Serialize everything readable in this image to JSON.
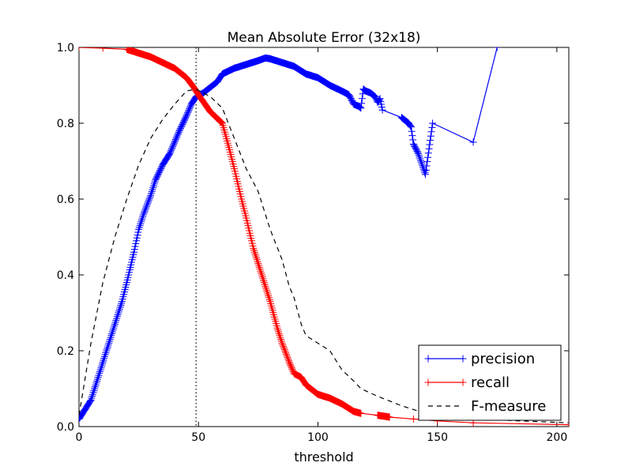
{
  "chart_data": {
    "type": "line",
    "title": "Mean Absolute Error (32x18)",
    "xlabel": "threshold",
    "ylabel": "",
    "xlim": [
      0,
      205
    ],
    "ylim": [
      0,
      1.0
    ],
    "xticks": [
      0,
      50,
      100,
      150,
      200
    ],
    "xtick_labels": [
      "0",
      "50",
      "100",
      "150",
      "200"
    ],
    "yticks": [
      0,
      0.2,
      0.4,
      0.6,
      0.8,
      1.0
    ],
    "ytick_labels": [
      "0.0",
      "0.2",
      "0.4",
      "0.6",
      "0.8",
      "1.0"
    ],
    "grid": false,
    "legend_position": "lower-right",
    "vline": {
      "x": 49,
      "style": "dotted",
      "color": "#000000"
    },
    "series": [
      {
        "name": "precision",
        "color": "#0000ff",
        "marker": "+",
        "dense_markers": true,
        "x": [
          0,
          2,
          5,
          8,
          10,
          12,
          15,
          18,
          20,
          23,
          25,
          27,
          30,
          32,
          35,
          38,
          40,
          42,
          45,
          47,
          49,
          52,
          55,
          58,
          60,
          65,
          70,
          75,
          78,
          80,
          85,
          90,
          95,
          100,
          105,
          110,
          113,
          115,
          117,
          118,
          119,
          120,
          122,
          124,
          125,
          126,
          127,
          135,
          138,
          139,
          140,
          142,
          145,
          148,
          165,
          175
        ],
        "y": [
          0.02,
          0.04,
          0.07,
          0.13,
          0.17,
          0.21,
          0.27,
          0.33,
          0.38,
          0.46,
          0.52,
          0.56,
          0.61,
          0.65,
          0.69,
          0.72,
          0.75,
          0.78,
          0.82,
          0.85,
          0.87,
          0.88,
          0.895,
          0.91,
          0.93,
          0.945,
          0.955,
          0.965,
          0.972,
          0.97,
          0.96,
          0.95,
          0.93,
          0.92,
          0.9,
          0.885,
          0.875,
          0.85,
          0.845,
          0.84,
          0.89,
          0.885,
          0.88,
          0.87,
          0.855,
          0.865,
          0.835,
          0.815,
          0.8,
          0.79,
          0.745,
          0.72,
          0.665,
          0.8,
          0.75,
          1.0
        ]
      },
      {
        "name": "recall",
        "color": "#ff0000",
        "marker": "+",
        "dense_markers": true,
        "x": [
          0,
          10,
          20,
          25,
          30,
          35,
          40,
          45,
          48,
          50,
          55,
          60,
          63,
          65,
          68,
          70,
          73,
          75,
          78,
          80,
          83,
          85,
          88,
          90,
          93,
          95,
          100,
          105,
          110,
          115,
          118,
          125,
          130,
          140,
          150,
          165,
          205
        ],
        "y": [
          1.0,
          0.998,
          0.995,
          0.985,
          0.975,
          0.96,
          0.945,
          0.92,
          0.895,
          0.875,
          0.83,
          0.8,
          0.73,
          0.68,
          0.6,
          0.55,
          0.47,
          0.43,
          0.37,
          0.33,
          0.26,
          0.22,
          0.17,
          0.14,
          0.13,
          0.11,
          0.085,
          0.075,
          0.06,
          0.04,
          0.035,
          0.03,
          0.025,
          0.02,
          0.015,
          0.01,
          0.005
        ]
      },
      {
        "name": "F-measure",
        "color": "#000000",
        "style": "dashed",
        "marker": "",
        "x": [
          0,
          5,
          10,
          15,
          20,
          25,
          30,
          35,
          40,
          45,
          49,
          55,
          60,
          65,
          70,
          75,
          80,
          85,
          88,
          90,
          93,
          95,
          100,
          105,
          110,
          115,
          118,
          125,
          135,
          145,
          165,
          205
        ],
        "y": [
          0.03,
          0.22,
          0.38,
          0.5,
          0.6,
          0.69,
          0.76,
          0.81,
          0.85,
          0.885,
          0.89,
          0.87,
          0.84,
          0.76,
          0.68,
          0.62,
          0.52,
          0.44,
          0.37,
          0.34,
          0.27,
          0.24,
          0.22,
          0.2,
          0.15,
          0.12,
          0.1,
          0.08,
          0.055,
          0.035,
          0.02,
          0.01
        ]
      }
    ]
  }
}
